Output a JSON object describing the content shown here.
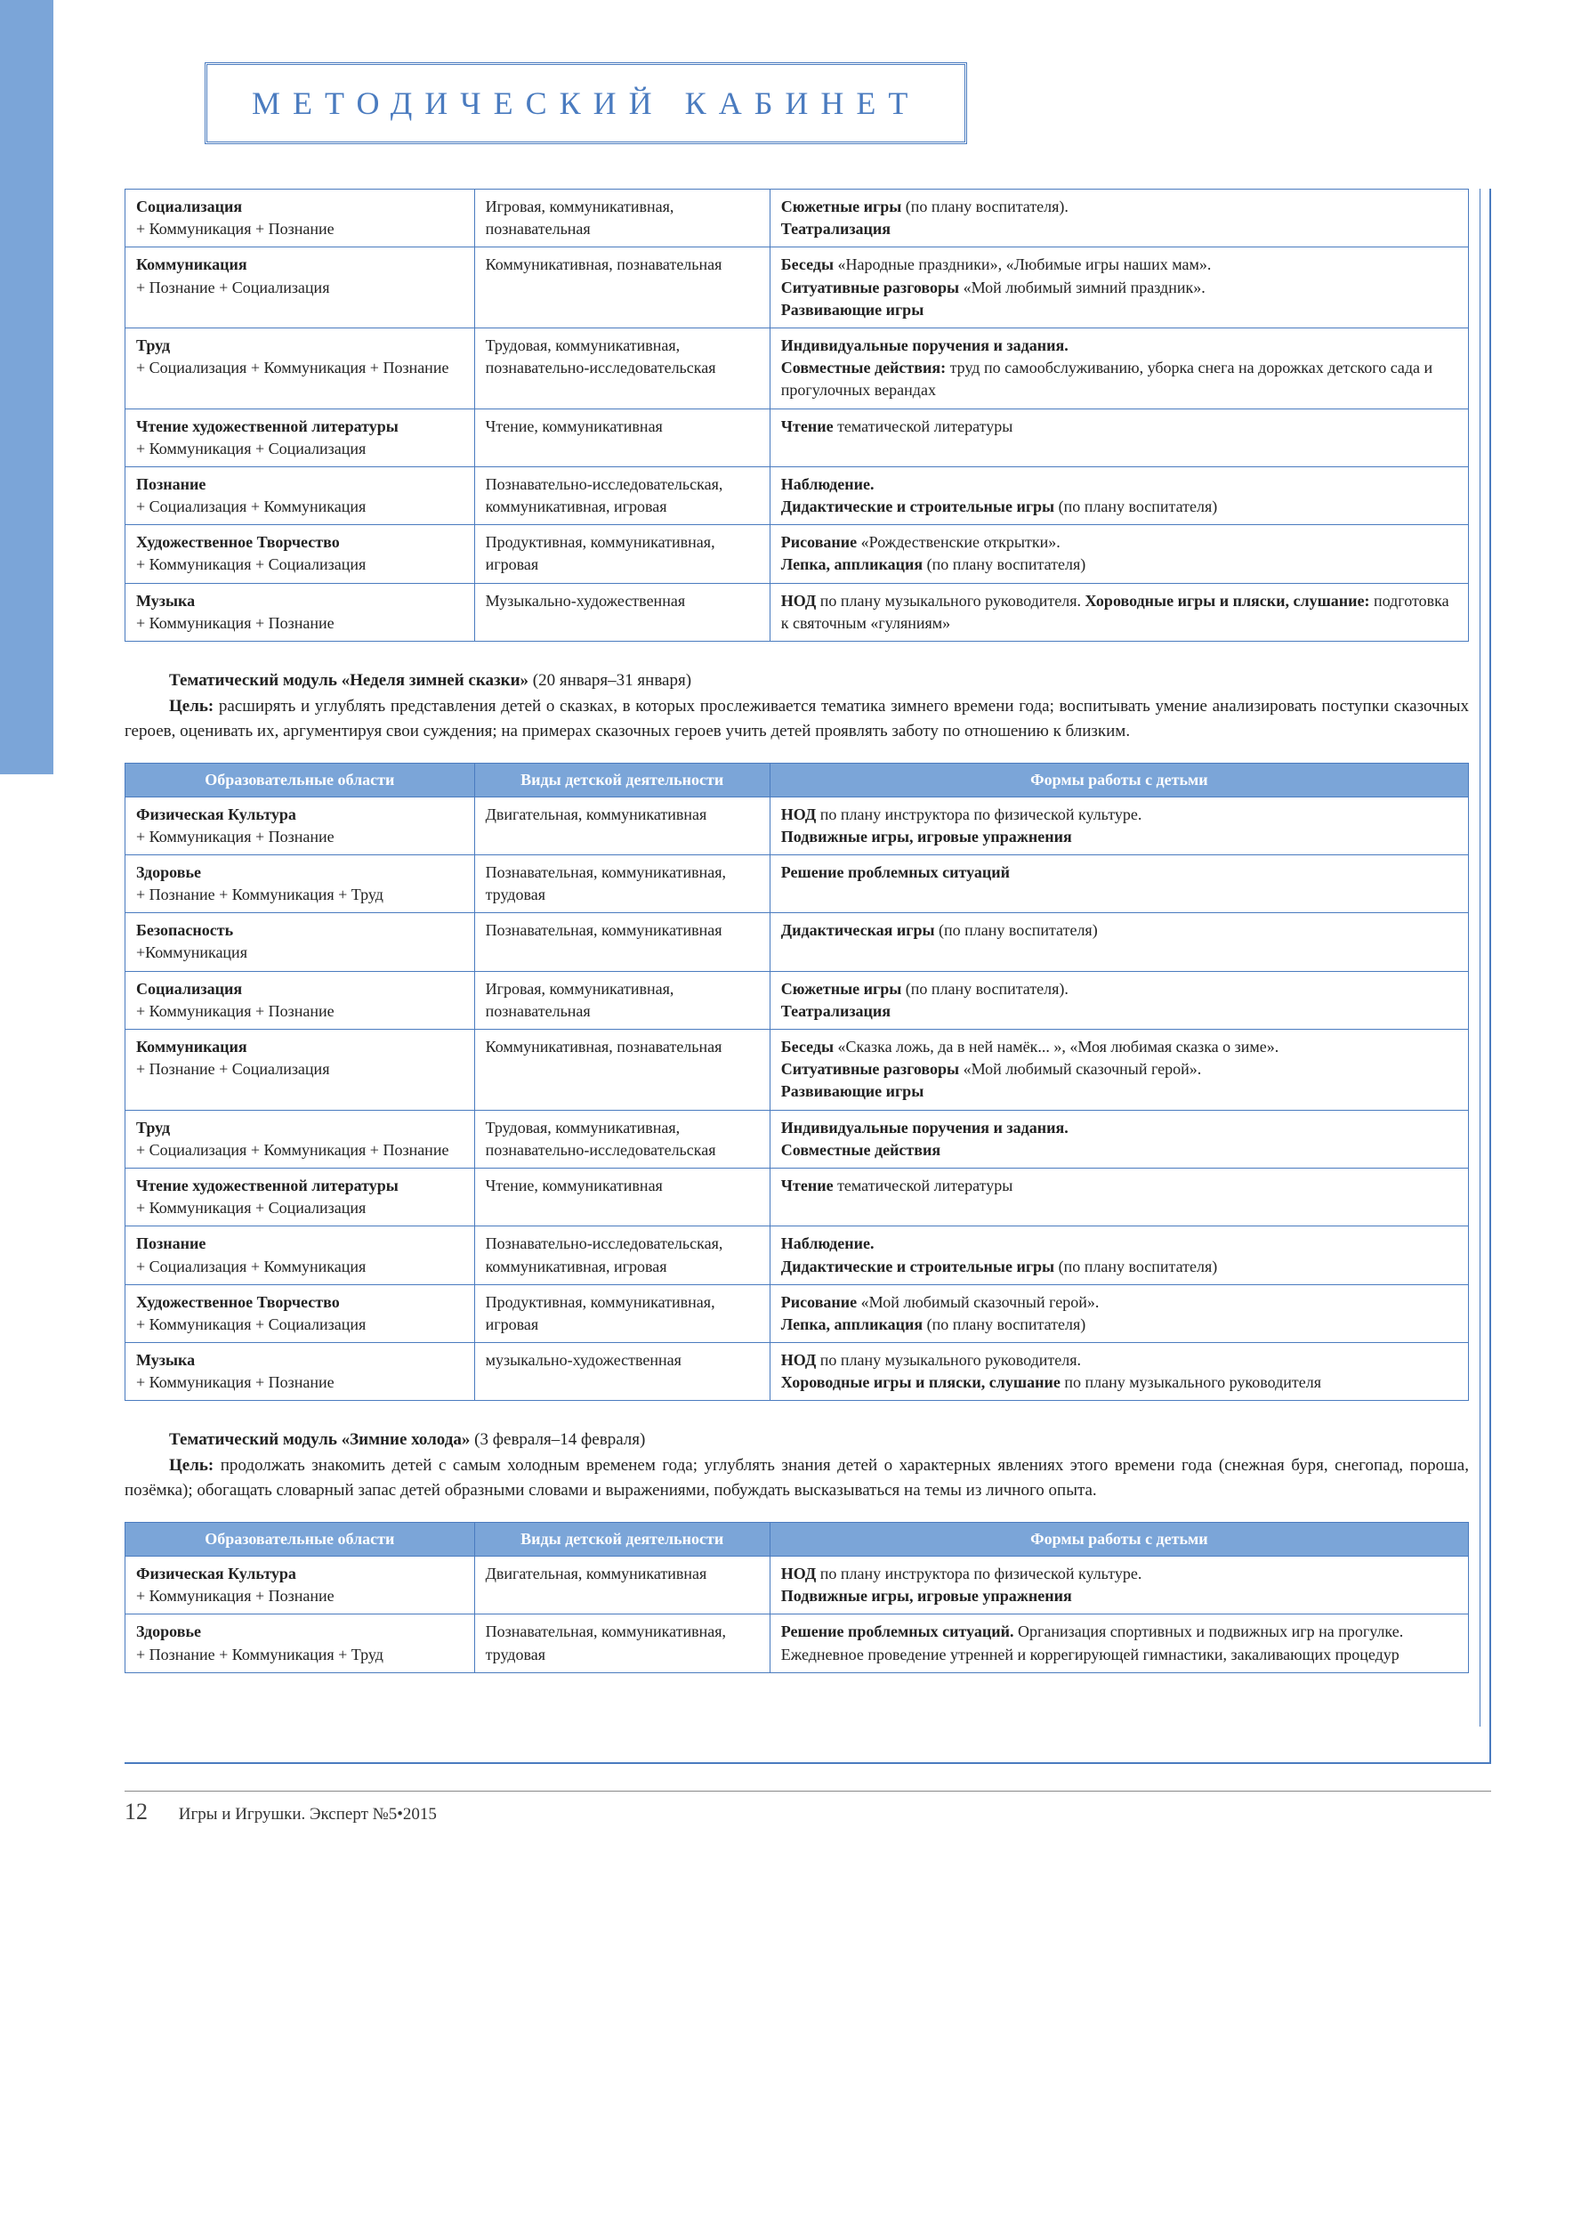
{
  "header": "МЕТОДИЧЕСКИЙ КАБИНЕТ",
  "columns": [
    "Образовательные области",
    "Виды детской деятельности",
    "Формы работы с детьми"
  ],
  "table1": [
    {
      "c1": "<b>Социализация</b><br>+ Коммуникация + Познание",
      "c2": "Игровая, коммуникативная, познавательная",
      "c3": "<b>Сюжетные игры</b> (по плану воспитателя).<br><b>Театрализация</b>"
    },
    {
      "c1": "<b>Коммуникация</b><br>+ Познание + Социализация",
      "c2": "Коммуникативная, познавательная",
      "c3": "<b>Беседы</b> «Народные праздники», «Любимые игры наших мам».<br><b>Ситуативные разговоры</b> «Мой любимый зимний праздник».<br><b>Развивающие игры</b>"
    },
    {
      "c1": "<b>Труд</b><br>+ Социализация + Коммуникация + Познание",
      "c2": "Трудовая, коммуникативная, познавательно-исследовательская",
      "c3": "<b>Индивидуальные поручения и задания.</b><br><b>Совместные действия:</b> труд по самообслуживанию, уборка снега на дорожках детского сада и прогулочных верандах"
    },
    {
      "c1": "<b>Чтение художественной литературы</b><br>+ Коммуникация + Социализация",
      "c2": "Чтение, коммуникативная",
      "c3": "<b>Чтение</b> тематической литературы"
    },
    {
      "c1": "<b>Познание</b><br>+ Социализация + Коммуникация",
      "c2": "Познавательно-исследовательская, коммуникативная, игровая",
      "c3": "<b>Наблюдение.</b><br><b>Дидактические и строительные игры</b> (по плану воспитателя)"
    },
    {
      "c1": "<b>Художественное Творчество</b><br>+ Коммуникация + Социализация",
      "c2": "Продуктивная, коммуникативная, игровая",
      "c3": "<b>Рисование</b> «Рождественские открытки».<br><b>Лепка, аппликация</b> (по плану воспитателя)"
    },
    {
      "c1": "<b>Музыка</b><br>+ Коммуникация + Познание",
      "c2": "Музыкально-художественная",
      "c3": "<b>НОД</b> по плану музыкального руководителя. <b>Хороводные игры и пляски, слушание:</b> подготовка к святочным «гуляниям»"
    }
  ],
  "module2": {
    "title_html": "<span class='indent'></span><b>Тематический модуль «Неделя зимней сказки»</b> (20 января–31 января)<br><span class='indent'></span><b>Цель:</b> расширять и углублять представления детей о сказках, в которых прослеживается тематика зимнего времени года; воспитывать умение анализировать поступки сказочных героев, оценивать их, аргументируя свои суждения; на примерах сказочных героев учить детей проявлять заботу по отношению к близким."
  },
  "table2": [
    {
      "c1": "<b>Физическая Культура</b><br>+ Коммуникация + Познание",
      "c2": "Двигательная, коммуникативная",
      "c3": "<b>НОД</b> по плану инструктора по физической культуре.<br><b>Подвижные игры, игровые упражнения</b>"
    },
    {
      "c1": "<b>Здоровье</b><br>+ Познание + Коммуникация + Труд",
      "c2": "Познавательная, коммуникативная, трудовая",
      "c3": "<b>Решение проблемных ситуаций</b>"
    },
    {
      "c1": "<b>Безопасность</b><br>+Коммуникация",
      "c2": "Познавательная, коммуникативная",
      "c3": "<b>Дидактическая игры</b> (по плану воспитателя)"
    },
    {
      "c1": "<b>Социализация</b><br>+ Коммуникация + Познание",
      "c2": "Игровая, коммуникативная, познавательная",
      "c3": "<b>Сюжетные игры</b> (по плану воспитателя).<br><b>Театрализация</b>"
    },
    {
      "c1": "<b>Коммуникация</b><br>+ Познание + Социализация",
      "c2": "Коммуникативная, познавательная",
      "c3": "<b>Беседы</b> «Сказка ложь, да в ней намёк... », «Моя любимая сказка о зиме».<br><b>Ситуативные разговоры</b> «Мой любимый сказочный герой».<br><b>Развивающие игры</b>"
    },
    {
      "c1": "<b>Труд</b><br>+ Социализация + Коммуникация + Познание",
      "c2": "Трудовая, коммуникативная, познавательно-исследовательская",
      "c3": "<b>Индивидуальные поручения и задания.</b><br><b>Совместные действия</b>"
    },
    {
      "c1": "<b>Чтение художественной литературы</b><br>+ Коммуникация + Социализация",
      "c2": "Чтение, коммуникативная",
      "c3": "<b>Чтение</b> тематической литературы"
    },
    {
      "c1": "<b>Познание</b><br>+ Социализация + Коммуникация",
      "c2": "Познавательно-исследовательская, коммуникативная, игровая",
      "c3": "<b>Наблюдение.</b><br><b>Дидактические и строительные игры</b> (по плану воспитателя)"
    },
    {
      "c1": "<b>Художественное Творчество</b><br>+ Коммуникация + Социализация",
      "c2": "Продуктивная, коммуникативная, игровая",
      "c3": "<b>Рисование</b> «Мой любимый сказочный герой».<br><b>Лепка, аппликация</b> (по плану воспитателя)"
    },
    {
      "c1": "<b>Музыка</b><br>+ Коммуникация + Познание",
      "c2": "музыкально-художественная",
      "c3": "<b>НОД</b> по плану музыкального руководителя.<br><b>Хороводные игры и пляски, слушание</b> по плану музыкального руководителя"
    }
  ],
  "module3": {
    "title_html": "<span class='indent'></span><b>Тематический модуль «Зимние холода»</b> (3 февраля–14 февраля)<br><span class='indent'></span><b>Цель:</b> продолжать знакомить детей с самым холодным временем года; углублять знания детей о характерных явлениях этого времени года (снежная буря, снегопад, пороша, позёмка); обогащать словарный запас детей образными словами и выражениями, побуждать высказываться на темы из личного опыта."
  },
  "table3": [
    {
      "c1": "<b>Физическая Культура</b><br>+ Коммуникация + Познание",
      "c2": "Двигательная, коммуникативная",
      "c3": "<b>НОД</b> по плану инструктора по физической культуре.<br><b>Подвижные игры, игровые упражнения</b>"
    },
    {
      "c1": "<b>Здоровье</b><br>+ Познание + Коммуникация + Труд",
      "c2": "Познавательная, коммуникативная, трудовая",
      "c3": "<b>Решение проблемных ситуаций.</b> Организация спортивных и подвижных игр на прогулке. Ежедневное проведение утренней и коррегирующей гимнастики, закаливающих процедур"
    }
  ],
  "footer": {
    "page": "12",
    "text": "Игры и Игрушки. Эксперт   №5•2015"
  }
}
